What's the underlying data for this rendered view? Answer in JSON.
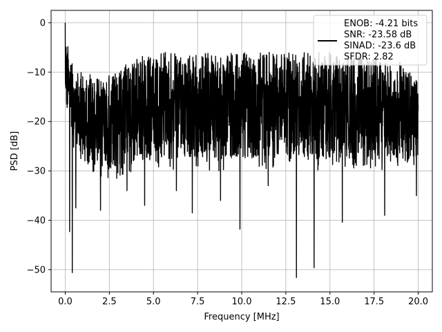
{
  "chart_data": {
    "type": "line",
    "title": "",
    "xlabel": "Frequency [MHz]",
    "ylabel": "PSD [dB]",
    "xlim": [
      -0.8,
      20.8
    ],
    "ylim": [
      -54.5,
      2.5
    ],
    "x_ticks": [
      0.0,
      2.5,
      5.0,
      7.5,
      10.0,
      12.5,
      15.0,
      17.5,
      20.0
    ],
    "x_tick_labels": [
      "0.0",
      "2.5",
      "5.0",
      "7.5",
      "10.0",
      "12.5",
      "15.0",
      "17.5",
      "20.0"
    ],
    "y_ticks": [
      0,
      -10,
      -20,
      -30,
      -40,
      -50
    ],
    "y_tick_labels": [
      "0",
      "−10",
      "−20",
      "−30",
      "−40",
      "−50"
    ],
    "grid": true,
    "legend_position": "top-right",
    "legend_lines": [
      "ENOB: -4.21 bits",
      "SNR: -23.58 dB",
      "SINAD: -23.6 dB",
      "SFDR: 2.82"
    ],
    "series": [
      {
        "color": "#000000",
        "description": "noisy PSD trace, dense fluctuation between about -5 and -35 dB across 0–20 MHz with peak near 0 dB at DC",
        "x_range": [
          0.0,
          20.0
        ],
        "upper_envelope": [
          [
            0.0,
            -1
          ],
          [
            0.3,
            -8
          ],
          [
            1.0,
            -10
          ],
          [
            2.0,
            -11
          ],
          [
            3.0,
            -9
          ],
          [
            4.0,
            -7
          ],
          [
            5.0,
            -6
          ],
          [
            7.5,
            -6
          ],
          [
            10.0,
            -6
          ],
          [
            12.5,
            -6
          ],
          [
            15.0,
            -6
          ],
          [
            17.5,
            -7
          ],
          [
            19.0,
            -8
          ],
          [
            20.0,
            -10
          ]
        ],
        "lower_envelope": [
          [
            0.0,
            -18
          ],
          [
            0.5,
            -26
          ],
          [
            1.0,
            -30
          ],
          [
            2.5,
            -32
          ],
          [
            5.0,
            -30
          ],
          [
            7.5,
            -30
          ],
          [
            10.0,
            -30
          ],
          [
            12.5,
            -30
          ],
          [
            15.0,
            -30
          ],
          [
            17.5,
            -30
          ],
          [
            20.0,
            -29
          ]
        ],
        "spikes": [
          {
            "x": 0.0,
            "y": 0
          },
          {
            "x": 0.25,
            "y": -42.3
          },
          {
            "x": 0.4,
            "y": -50.6
          },
          {
            "x": 0.6,
            "y": -37.5
          },
          {
            "x": 2.0,
            "y": -38.0
          },
          {
            "x": 3.5,
            "y": -34.0
          },
          {
            "x": 4.5,
            "y": -37.0
          },
          {
            "x": 6.3,
            "y": -34.0
          },
          {
            "x": 7.2,
            "y": -38.5
          },
          {
            "x": 8.8,
            "y": -36.0
          },
          {
            "x": 9.9,
            "y": -41.8
          },
          {
            "x": 11.5,
            "y": -33.0
          },
          {
            "x": 13.1,
            "y": -51.6
          },
          {
            "x": 14.1,
            "y": -49.6
          },
          {
            "x": 15.7,
            "y": -40.4
          },
          {
            "x": 18.1,
            "y": -39.0
          },
          {
            "x": 19.9,
            "y": -35.0
          }
        ]
      }
    ]
  }
}
